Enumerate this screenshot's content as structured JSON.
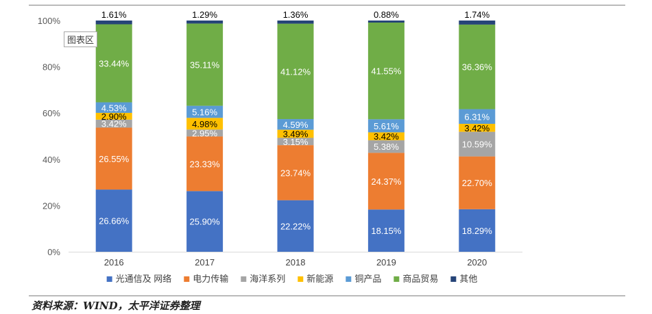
{
  "chart_data": {
    "type": "bar",
    "stacked": true,
    "percent": true,
    "categories": [
      "2016",
      "2017",
      "2018",
      "2019",
      "2020"
    ],
    "ylim": [
      0,
      100
    ],
    "yticks": [
      "0%",
      "20%",
      "40%",
      "60%",
      "80%",
      "100%"
    ],
    "grid": false,
    "legend_position": "bottom",
    "series": [
      {
        "name": "光通信及 网络",
        "color": "#4472c4",
        "labelColor": "#ffffff",
        "values": [
          26.66,
          25.9,
          22.22,
          18.15,
          18.29
        ],
        "labels": [
          "26.66%",
          "25.90%",
          "22.22%",
          "18.15%",
          "18.29%"
        ]
      },
      {
        "name": "电力传输",
        "color": "#ed7d31",
        "labelColor": "#ffffff",
        "values": [
          26.55,
          23.33,
          23.74,
          24.37,
          22.7
        ],
        "labels": [
          "26.55%",
          "23.33%",
          "23.74%",
          "24.37%",
          "22.70%"
        ]
      },
      {
        "name": "海洋系列",
        "color": "#a5a5a5",
        "labelColor": "#ffffff",
        "values": [
          3.42,
          2.95,
          3.15,
          5.38,
          10.59
        ],
        "labels": [
          "3.42%",
          "2.95%",
          "3.15%",
          "5.38%",
          "10.59%"
        ]
      },
      {
        "name": "新能源",
        "color": "#ffc000",
        "labelColor": "#000000",
        "values": [
          2.9,
          4.98,
          3.49,
          3.42,
          3.42
        ],
        "labels": [
          "2.90%",
          "4.98%",
          "3.49%",
          "3.42%",
          "3.42%"
        ]
      },
      {
        "name": "铜产品",
        "color": "#5b9bd5",
        "labelColor": "#ffffff",
        "values": [
          4.53,
          5.16,
          4.59,
          5.61,
          6.31
        ],
        "labels": [
          "4.53%",
          "5.16%",
          "4.59%",
          "5.61%",
          "6.31%"
        ]
      },
      {
        "name": "商品贸易",
        "color": "#70ad47",
        "labelColor": "#ffffff",
        "values": [
          33.44,
          35.11,
          41.12,
          41.55,
          36.36
        ],
        "labels": [
          "33.44%",
          "35.11%",
          "41.12%",
          "41.55%",
          "36.36%"
        ]
      },
      {
        "name": "其他",
        "color": "#264478",
        "labelColor": "#000000",
        "values": [
          1.61,
          1.29,
          1.36,
          0.88,
          1.74
        ],
        "labels": [
          "1.61%",
          "1.29%",
          "1.36%",
          "0.88%",
          "1.74%"
        ]
      }
    ]
  },
  "ui": {
    "chart_area_tag": "图表区",
    "source": "资料来源：WIND，太平洋证券整理"
  }
}
